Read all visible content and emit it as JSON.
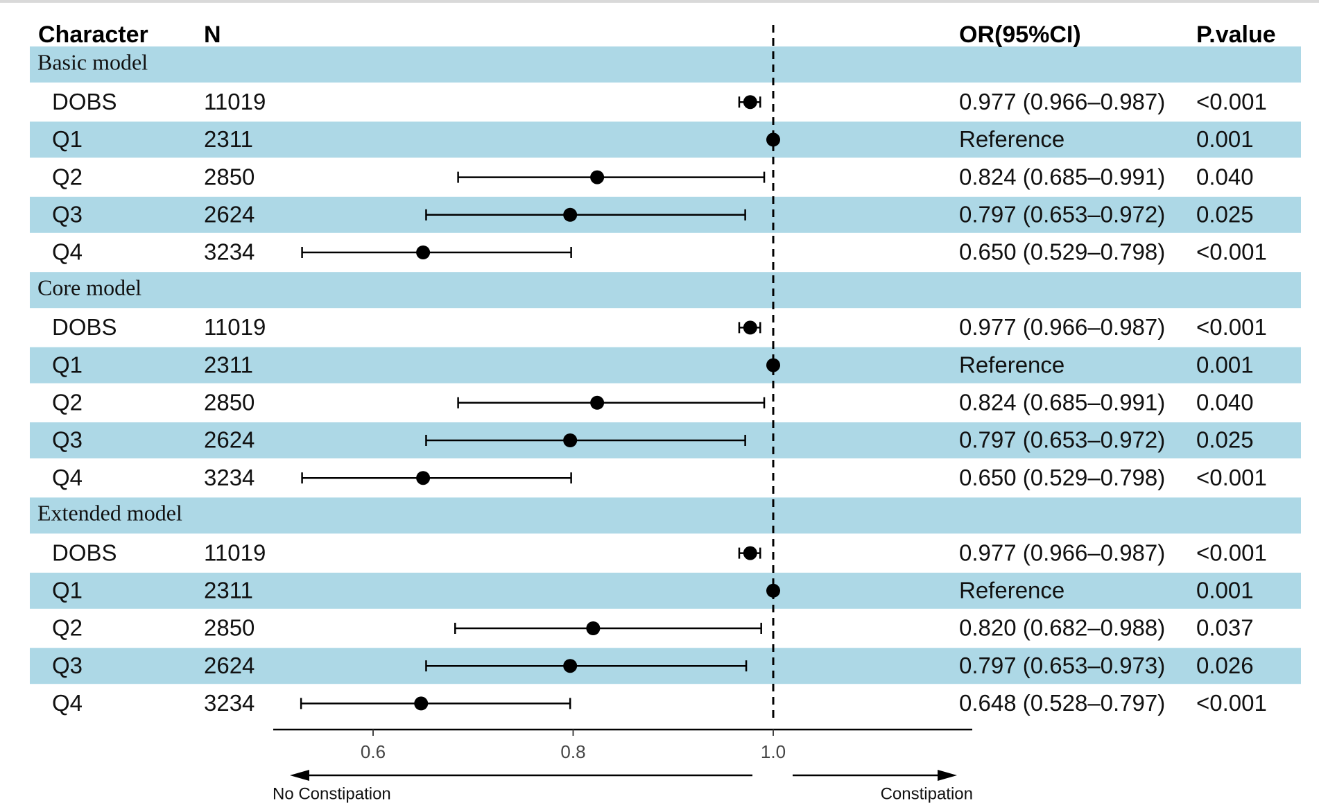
{
  "chart_data": {
    "type": "forest",
    "headers": {
      "character": "Character",
      "n": "N",
      "or": "OR(95%CI)",
      "p": "P.value"
    },
    "reference_line": 1.0,
    "xlim": [
      0.5,
      1.2
    ],
    "x_ticks": [
      0.6,
      0.8,
      1.0
    ],
    "x_tick_labels": [
      "0.6",
      "0.8",
      "1.0"
    ],
    "left_label": "No Constipation",
    "right_label": "Constipation",
    "row_band_color": "#add8e6",
    "sections": [
      {
        "name": "Basic model",
        "rows": [
          {
            "label": "DOBS",
            "n": "11019",
            "or": 0.977,
            "lo": 0.966,
            "hi": 0.987,
            "or_text": "0.977 (0.966–0.987)",
            "p": "<0.001"
          },
          {
            "label": "Q1",
            "n": "2311",
            "or": 1.0,
            "lo": null,
            "hi": null,
            "or_text": "Reference",
            "p": "0.001"
          },
          {
            "label": "Q2",
            "n": "2850",
            "or": 0.824,
            "lo": 0.685,
            "hi": 0.991,
            "or_text": "0.824 (0.685–0.991)",
            "p": "0.040"
          },
          {
            "label": "Q3",
            "n": "2624",
            "or": 0.797,
            "lo": 0.653,
            "hi": 0.972,
            "or_text": "0.797 (0.653–0.972)",
            "p": "0.025"
          },
          {
            "label": "Q4",
            "n": "3234",
            "or": 0.65,
            "lo": 0.529,
            "hi": 0.798,
            "or_text": "0.650 (0.529–0.798)",
            "p": "<0.001"
          }
        ]
      },
      {
        "name": "Core model",
        "rows": [
          {
            "label": "DOBS",
            "n": "11019",
            "or": 0.977,
            "lo": 0.966,
            "hi": 0.987,
            "or_text": "0.977 (0.966–0.987)",
            "p": "<0.001"
          },
          {
            "label": "Q1",
            "n": "2311",
            "or": 1.0,
            "lo": null,
            "hi": null,
            "or_text": "Reference",
            "p": "0.001"
          },
          {
            "label": "Q2",
            "n": "2850",
            "or": 0.824,
            "lo": 0.685,
            "hi": 0.991,
            "or_text": "0.824 (0.685–0.991)",
            "p": "0.040"
          },
          {
            "label": "Q3",
            "n": "2624",
            "or": 0.797,
            "lo": 0.653,
            "hi": 0.972,
            "or_text": "0.797 (0.653–0.972)",
            "p": "0.025"
          },
          {
            "label": "Q4",
            "n": "3234",
            "or": 0.65,
            "lo": 0.529,
            "hi": 0.798,
            "or_text": "0.650 (0.529–0.798)",
            "p": "<0.001"
          }
        ]
      },
      {
        "name": "Extended model",
        "rows": [
          {
            "label": "DOBS",
            "n": "11019",
            "or": 0.977,
            "lo": 0.966,
            "hi": 0.987,
            "or_text": "0.977 (0.966–0.987)",
            "p": "<0.001"
          },
          {
            "label": "Q1",
            "n": "2311",
            "or": 1.0,
            "lo": null,
            "hi": null,
            "or_text": "Reference",
            "p": "0.001"
          },
          {
            "label": "Q2",
            "n": "2850",
            "or": 0.82,
            "lo": 0.682,
            "hi": 0.988,
            "or_text": "0.820 (0.682–0.988)",
            "p": "0.037"
          },
          {
            "label": "Q3",
            "n": "2624",
            "or": 0.797,
            "lo": 0.653,
            "hi": 0.973,
            "or_text": "0.797 (0.653–0.973)",
            "p": "0.026"
          },
          {
            "label": "Q4",
            "n": "3234",
            "or": 0.648,
            "lo": 0.528,
            "hi": 0.797,
            "or_text": "0.648 (0.528–0.797)",
            "p": "<0.001"
          }
        ]
      }
    ]
  }
}
